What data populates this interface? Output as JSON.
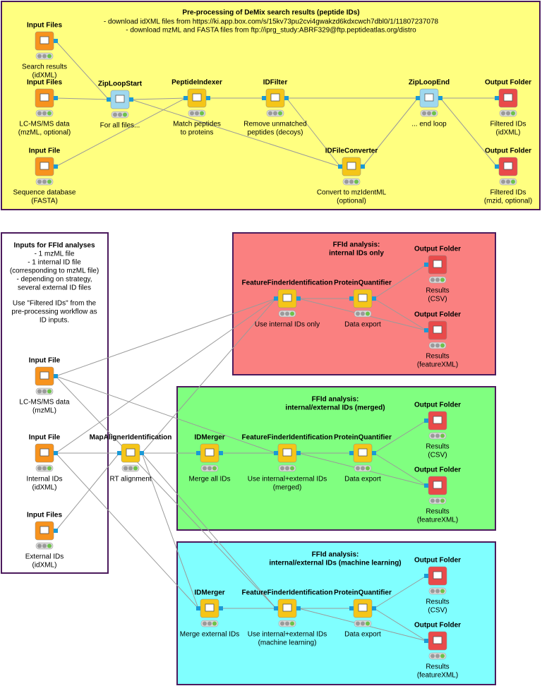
{
  "top_annotation": {
    "title": "Pre-processing of DeMix search results (peptide IDs)",
    "lines": [
      "- download idXML files from https://ki.app.box.com/s/15kv73pu2cvi4gwakzd6kdxcwch7dbl0/1/11807237078",
      "- download mzML and FASTA files from ftp://iprg_study:ABRF329@ftp.peptideatlas.org/distro"
    ]
  },
  "left_annotation": {
    "title": "Inputs for FFId analyses",
    "lines": [
      "- 1 mzML file",
      "- 1 internal ID file",
      "(corresponding to mzML file)",
      "- depending on strategy,",
      "several external ID files"
    ],
    "note": [
      "Use \"Filtered IDs\" from the",
      "pre-processing workflow as",
      "ID inputs."
    ]
  },
  "group_annotations": [
    {
      "lines": [
        "FFId analysis:",
        "internal IDs only"
      ]
    },
    {
      "lines": [
        "FFId analysis:",
        "internal/external IDs (merged)"
      ]
    },
    {
      "lines": [
        "FFId analysis:",
        "internal/external IDs (machine learning)"
      ]
    }
  ],
  "nodes": [
    {
      "title": "Input Files",
      "label": [
        "Search results",
        "(idXML)"
      ]
    },
    {
      "title": "Input Files",
      "label": [
        "LC-MS/MS data",
        "(mzML, optional)"
      ]
    },
    {
      "title": "Input File",
      "label": [
        "Sequence database",
        "(FASTA)"
      ]
    },
    {
      "title": "ZipLoopStart",
      "label": [
        "For all files..."
      ]
    },
    {
      "title": "PeptideIndexer",
      "label": [
        "Match peptides",
        "to proteins"
      ]
    },
    {
      "title": "IDFilter",
      "label": [
        "Remove unmatched",
        "peptides (decoys)"
      ]
    },
    {
      "title": "IDFileConverter",
      "label": [
        "Convert to mzIdentML",
        "(optional)"
      ]
    },
    {
      "title": "ZipLoopEnd",
      "label": [
        "... end loop"
      ]
    },
    {
      "title": "Output Folder",
      "label": [
        "Filtered IDs",
        "(idXML)"
      ]
    },
    {
      "title": "Output Folder",
      "label": [
        "Filtered IDs",
        "(mzid, optional)"
      ]
    },
    {
      "title": "Input File",
      "label": [
        "LC-MS/MS data",
        "(mzML)"
      ]
    },
    {
      "title": "Input File",
      "label": [
        "Internal IDs",
        "(idXML)"
      ]
    },
    {
      "title": "Input Files",
      "label": [
        "External IDs",
        "(idXML)"
      ]
    },
    {
      "title": "MapAlignerIdentification",
      "label": [
        "RT alignment"
      ]
    },
    {
      "title": "FeatureFinderIdentification",
      "label": [
        "Use internal IDs only"
      ]
    },
    {
      "title": "ProteinQuantifier",
      "label": [
        "Data export"
      ]
    },
    {
      "title": "Output Folder",
      "label": [
        "Results",
        "(CSV)"
      ]
    },
    {
      "title": "Output Folder",
      "label": [
        "Results",
        "(featureXML)"
      ]
    },
    {
      "title": "IDMerger",
      "label": [
        "Merge all IDs"
      ]
    },
    {
      "title": "FeatureFinderIdentification",
      "label": [
        "Use internal+external IDs",
        "(merged)"
      ]
    },
    {
      "title": "ProteinQuantifier",
      "label": [
        "Data export"
      ]
    },
    {
      "title": "Output Folder",
      "label": [
        "Results",
        "(CSV)"
      ]
    },
    {
      "title": "Output Folder",
      "label": [
        "Results",
        "(featureXML)"
      ]
    },
    {
      "title": "IDMerger",
      "label": [
        "Merge external IDs"
      ]
    },
    {
      "title": "FeatureFinderIdentification",
      "label": [
        "Use internal+external IDs",
        "(machine learning)"
      ]
    },
    {
      "title": "ProteinQuantifier",
      "label": [
        "Data export"
      ]
    },
    {
      "title": "Output Folder",
      "label": [
        "Results",
        "(CSV)"
      ]
    },
    {
      "title": "Output Folder",
      "label": [
        "Results",
        "(featureXML)"
      ]
    }
  ]
}
